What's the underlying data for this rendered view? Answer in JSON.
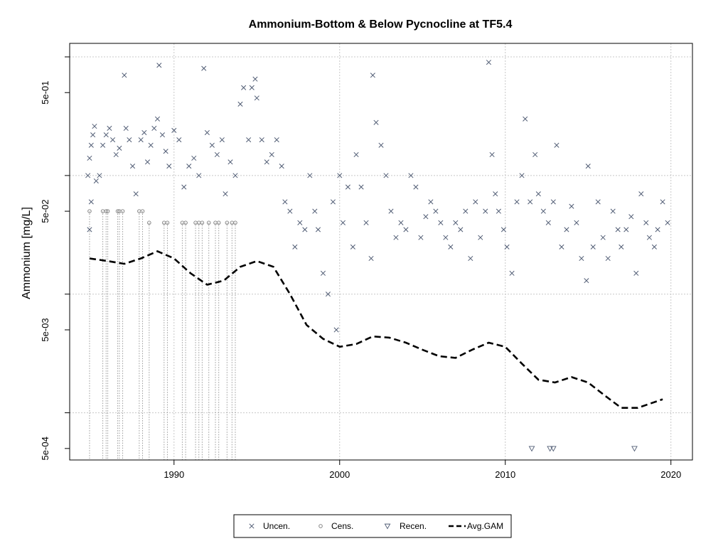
{
  "chart_data": {
    "type": "scatter",
    "title": "Ammonium-Bottom & Below Pycnocline at TF5.4",
    "xlabel": "",
    "ylabel": "Ammonium [mg/L]",
    "y_scale": "log10",
    "xlim": [
      1983.7,
      2021.3
    ],
    "ylim": [
      0.0004,
      1.3
    ],
    "x_ticks": [
      1990,
      2000,
      2010,
      2020
    ],
    "x_tick_labels": [
      "1990",
      "2000",
      "2010",
      "2020"
    ],
    "y_ticks": [
      0.0005,
      0.005,
      0.05,
      0.5
    ],
    "y_tick_labels": [
      "5e-04",
      "5e-03",
      "5e-02",
      "5e-01"
    ],
    "grid": true,
    "legend_position": "bottom",
    "colors": {
      "points": "#4f5b73",
      "gam": "#000000",
      "grid": "#c8c8c8"
    },
    "legend": [
      {
        "label": "Uncen.",
        "symbol": "x-mark"
      },
      {
        "label": "Cens.",
        "symbol": "circle"
      },
      {
        "label": "Recen.",
        "symbol": "down-triangle"
      },
      {
        "label": "Avg.GAM",
        "symbol": "dashed-line"
      }
    ],
    "series": [
      {
        "name": "Uncen.",
        "marker": "x",
        "points": [
          [
            1984.9,
            0.14
          ],
          [
            1985.0,
            0.18
          ],
          [
            1985.1,
            0.22
          ],
          [
            1985.2,
            0.26
          ],
          [
            1984.8,
            0.1
          ],
          [
            1985.0,
            0.06
          ],
          [
            1985.3,
            0.09
          ],
          [
            1984.9,
            0.035
          ],
          [
            1985.5,
            0.1
          ],
          [
            1985.7,
            0.18
          ],
          [
            1985.9,
            0.22
          ],
          [
            1986.1,
            0.25
          ],
          [
            1986.3,
            0.2
          ],
          [
            1986.5,
            0.15
          ],
          [
            1986.7,
            0.17
          ],
          [
            1987.0,
            0.7
          ],
          [
            1987.1,
            0.25
          ],
          [
            1987.3,
            0.2
          ],
          [
            1987.5,
            0.12
          ],
          [
            1987.7,
            0.07
          ],
          [
            1988.0,
            0.2
          ],
          [
            1988.2,
            0.23
          ],
          [
            1988.4,
            0.13
          ],
          [
            1988.6,
            0.18
          ],
          [
            1988.8,
            0.25
          ],
          [
            1989.0,
            0.3
          ],
          [
            1989.1,
            0.85
          ],
          [
            1989.3,
            0.22
          ],
          [
            1989.5,
            0.16
          ],
          [
            1989.7,
            0.12
          ],
          [
            1990.0,
            0.24
          ],
          [
            1990.3,
            0.2
          ],
          [
            1990.6,
            0.08
          ],
          [
            1990.9,
            0.12
          ],
          [
            1991.2,
            0.14
          ],
          [
            1991.5,
            0.1
          ],
          [
            1991.8,
            0.8
          ],
          [
            1992.0,
            0.23
          ],
          [
            1992.3,
            0.18
          ],
          [
            1992.6,
            0.15
          ],
          [
            1992.9,
            0.2
          ],
          [
            1993.1,
            0.07
          ],
          [
            1993.4,
            0.13
          ],
          [
            1993.7,
            0.1
          ],
          [
            1994.0,
            0.4
          ],
          [
            1994.2,
            0.55
          ],
          [
            1994.5,
            0.2
          ],
          [
            1994.7,
            0.55
          ],
          [
            1994.9,
            0.65
          ],
          [
            1995.0,
            0.45
          ],
          [
            1995.3,
            0.2
          ],
          [
            1995.6,
            0.13
          ],
          [
            1995.9,
            0.15
          ],
          [
            1996.2,
            0.2
          ],
          [
            1996.5,
            0.12
          ],
          [
            1996.7,
            0.06
          ],
          [
            1997.0,
            0.05
          ],
          [
            1997.3,
            0.025
          ],
          [
            1997.6,
            0.04
          ],
          [
            1997.9,
            0.035
          ],
          [
            1998.2,
            0.1
          ],
          [
            1998.5,
            0.05
          ],
          [
            1998.7,
            0.035
          ],
          [
            1999.0,
            0.015
          ],
          [
            1999.3,
            0.01
          ],
          [
            1999.6,
            0.06
          ],
          [
            1999.8,
            0.005
          ],
          [
            2000.0,
            0.1
          ],
          [
            2000.2,
            0.04
          ],
          [
            2000.5,
            0.08
          ],
          [
            2000.8,
            0.025
          ],
          [
            2001.0,
            0.15
          ],
          [
            2001.3,
            0.08
          ],
          [
            2001.6,
            0.04
          ],
          [
            2001.9,
            0.02
          ],
          [
            2002.0,
            0.7
          ],
          [
            2002.2,
            0.28
          ],
          [
            2002.5,
            0.18
          ],
          [
            2002.8,
            0.1
          ],
          [
            2003.1,
            0.05
          ],
          [
            2003.4,
            0.03
          ],
          [
            2003.7,
            0.04
          ],
          [
            2004.0,
            0.035
          ],
          [
            2004.3,
            0.1
          ],
          [
            2004.6,
            0.08
          ],
          [
            2004.9,
            0.03
          ],
          [
            2005.2,
            0.045
          ],
          [
            2005.5,
            0.06
          ],
          [
            2005.8,
            0.05
          ],
          [
            2006.1,
            0.04
          ],
          [
            2006.4,
            0.03
          ],
          [
            2006.7,
            0.025
          ],
          [
            2007.0,
            0.04
          ],
          [
            2007.3,
            0.035
          ],
          [
            2007.6,
            0.05
          ],
          [
            2007.9,
            0.02
          ],
          [
            2008.2,
            0.06
          ],
          [
            2008.5,
            0.03
          ],
          [
            2008.8,
            0.05
          ],
          [
            2009.0,
            0.9
          ],
          [
            2009.2,
            0.15
          ],
          [
            2009.4,
            0.07
          ],
          [
            2009.6,
            0.05
          ],
          [
            2009.9,
            0.035
          ],
          [
            2010.1,
            0.025
          ],
          [
            2010.4,
            0.015
          ],
          [
            2010.7,
            0.06
          ],
          [
            2011.0,
            0.1
          ],
          [
            2011.2,
            0.3
          ],
          [
            2011.5,
            0.06
          ],
          [
            2011.8,
            0.15
          ],
          [
            2012.0,
            0.07
          ],
          [
            2012.3,
            0.05
          ],
          [
            2012.6,
            0.04
          ],
          [
            2012.9,
            0.06
          ],
          [
            2013.1,
            0.18
          ],
          [
            2013.4,
            0.025
          ],
          [
            2013.7,
            0.035
          ],
          [
            2014.0,
            0.055
          ],
          [
            2014.3,
            0.04
          ],
          [
            2014.6,
            0.02
          ],
          [
            2014.9,
            0.013
          ],
          [
            2015.0,
            0.12
          ],
          [
            2015.3,
            0.025
          ],
          [
            2015.6,
            0.06
          ],
          [
            2015.9,
            0.03
          ],
          [
            2016.2,
            0.02
          ],
          [
            2016.5,
            0.05
          ],
          [
            2016.8,
            0.035
          ],
          [
            2017.0,
            0.025
          ],
          [
            2017.3,
            0.035
          ],
          [
            2017.6,
            0.045
          ],
          [
            2017.9,
            0.015
          ],
          [
            2018.2,
            0.07
          ],
          [
            2018.5,
            0.04
          ],
          [
            2018.7,
            0.03
          ],
          [
            2019.0,
            0.025
          ],
          [
            2019.2,
            0.035
          ],
          [
            2019.5,
            0.06
          ],
          [
            2019.8,
            0.04
          ]
        ]
      },
      {
        "name": "Cens.",
        "marker": "circle",
        "points": [
          [
            1984.9,
            0.05
          ],
          [
            1985.7,
            0.05
          ],
          [
            1985.9,
            0.05
          ],
          [
            1986.0,
            0.05
          ],
          [
            1986.6,
            0.05
          ],
          [
            1986.7,
            0.05
          ],
          [
            1986.9,
            0.05
          ],
          [
            1987.9,
            0.05
          ],
          [
            1988.1,
            0.05
          ],
          [
            1988.5,
            0.04
          ],
          [
            1989.4,
            0.04
          ],
          [
            1989.6,
            0.04
          ],
          [
            1990.5,
            0.04
          ],
          [
            1990.7,
            0.04
          ],
          [
            1991.3,
            0.04
          ],
          [
            1991.5,
            0.04
          ],
          [
            1991.7,
            0.04
          ],
          [
            1992.1,
            0.04
          ],
          [
            1992.5,
            0.04
          ],
          [
            1992.7,
            0.04
          ],
          [
            1993.2,
            0.04
          ],
          [
            1993.5,
            0.04
          ],
          [
            1993.7,
            0.04
          ]
        ]
      },
      {
        "name": "Recen.",
        "marker": "down-triangle",
        "points": [
          [
            2011.6,
            0.0005
          ],
          [
            2012.7,
            0.0005
          ],
          [
            2012.9,
            0.0005
          ],
          [
            2017.8,
            0.0005
          ]
        ]
      },
      {
        "name": "Avg.GAM",
        "marker": "dashed-line",
        "points": [
          [
            1984.9,
            0.02
          ],
          [
            1986.0,
            0.019
          ],
          [
            1987.0,
            0.018
          ],
          [
            1988.0,
            0.02
          ],
          [
            1989.0,
            0.023
          ],
          [
            1990.0,
            0.02
          ],
          [
            1991.0,
            0.015
          ],
          [
            1992.0,
            0.012
          ],
          [
            1993.0,
            0.013
          ],
          [
            1994.0,
            0.017
          ],
          [
            1995.0,
            0.019
          ],
          [
            1996.0,
            0.017
          ],
          [
            1997.0,
            0.01
          ],
          [
            1998.0,
            0.0055
          ],
          [
            1999.0,
            0.0042
          ],
          [
            2000.0,
            0.0036
          ],
          [
            2001.0,
            0.0038
          ],
          [
            2002.0,
            0.0044
          ],
          [
            2003.0,
            0.0043
          ],
          [
            2004.0,
            0.0039
          ],
          [
            2005.0,
            0.0034
          ],
          [
            2006.0,
            0.003
          ],
          [
            2007.0,
            0.0029
          ],
          [
            2008.0,
            0.0034
          ],
          [
            2009.0,
            0.0039
          ],
          [
            2010.0,
            0.0036
          ],
          [
            2011.0,
            0.0026
          ],
          [
            2012.0,
            0.0019
          ],
          [
            2013.0,
            0.0018
          ],
          [
            2014.0,
            0.002
          ],
          [
            2015.0,
            0.0018
          ],
          [
            2016.0,
            0.0014
          ],
          [
            2017.0,
            0.0011
          ],
          [
            2018.0,
            0.0011
          ],
          [
            2019.5,
            0.0013
          ]
        ]
      }
    ]
  }
}
